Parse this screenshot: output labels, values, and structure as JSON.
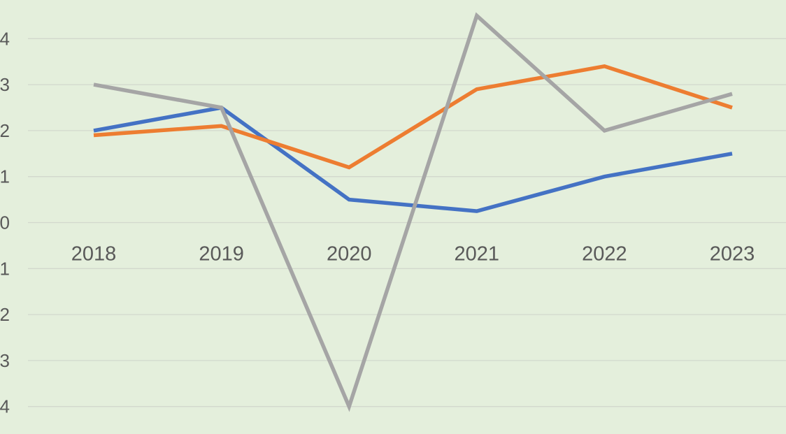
{
  "chart_data": {
    "type": "line",
    "title": "",
    "xlabel": "",
    "ylabel": "",
    "categories": [
      "2018",
      "2019",
      "2020",
      "2021",
      "2022",
      "2023"
    ],
    "y_ticks": [
      4,
      3,
      2,
      1,
      0,
      -1,
      -2,
      -3,
      -4
    ],
    "y_tick_labels": [
      "4",
      "3",
      "2",
      "1",
      "0",
      "1",
      "2",
      "3",
      "4"
    ],
    "ylim": [
      -4,
      4.5
    ],
    "grid": true,
    "legend": "none",
    "series": [
      {
        "values": [
          2.0,
          2.5,
          0.5,
          0.25,
          1.0,
          1.5
        ],
        "color": "#4472c4"
      },
      {
        "values": [
          1.9,
          2.1,
          1.2,
          2.9,
          3.4,
          2.5
        ],
        "color": "#ed7d31"
      },
      {
        "values": [
          3.0,
          2.5,
          -4.0,
          4.5,
          2.0,
          2.8
        ],
        "color": "#a5a5a5"
      }
    ]
  }
}
